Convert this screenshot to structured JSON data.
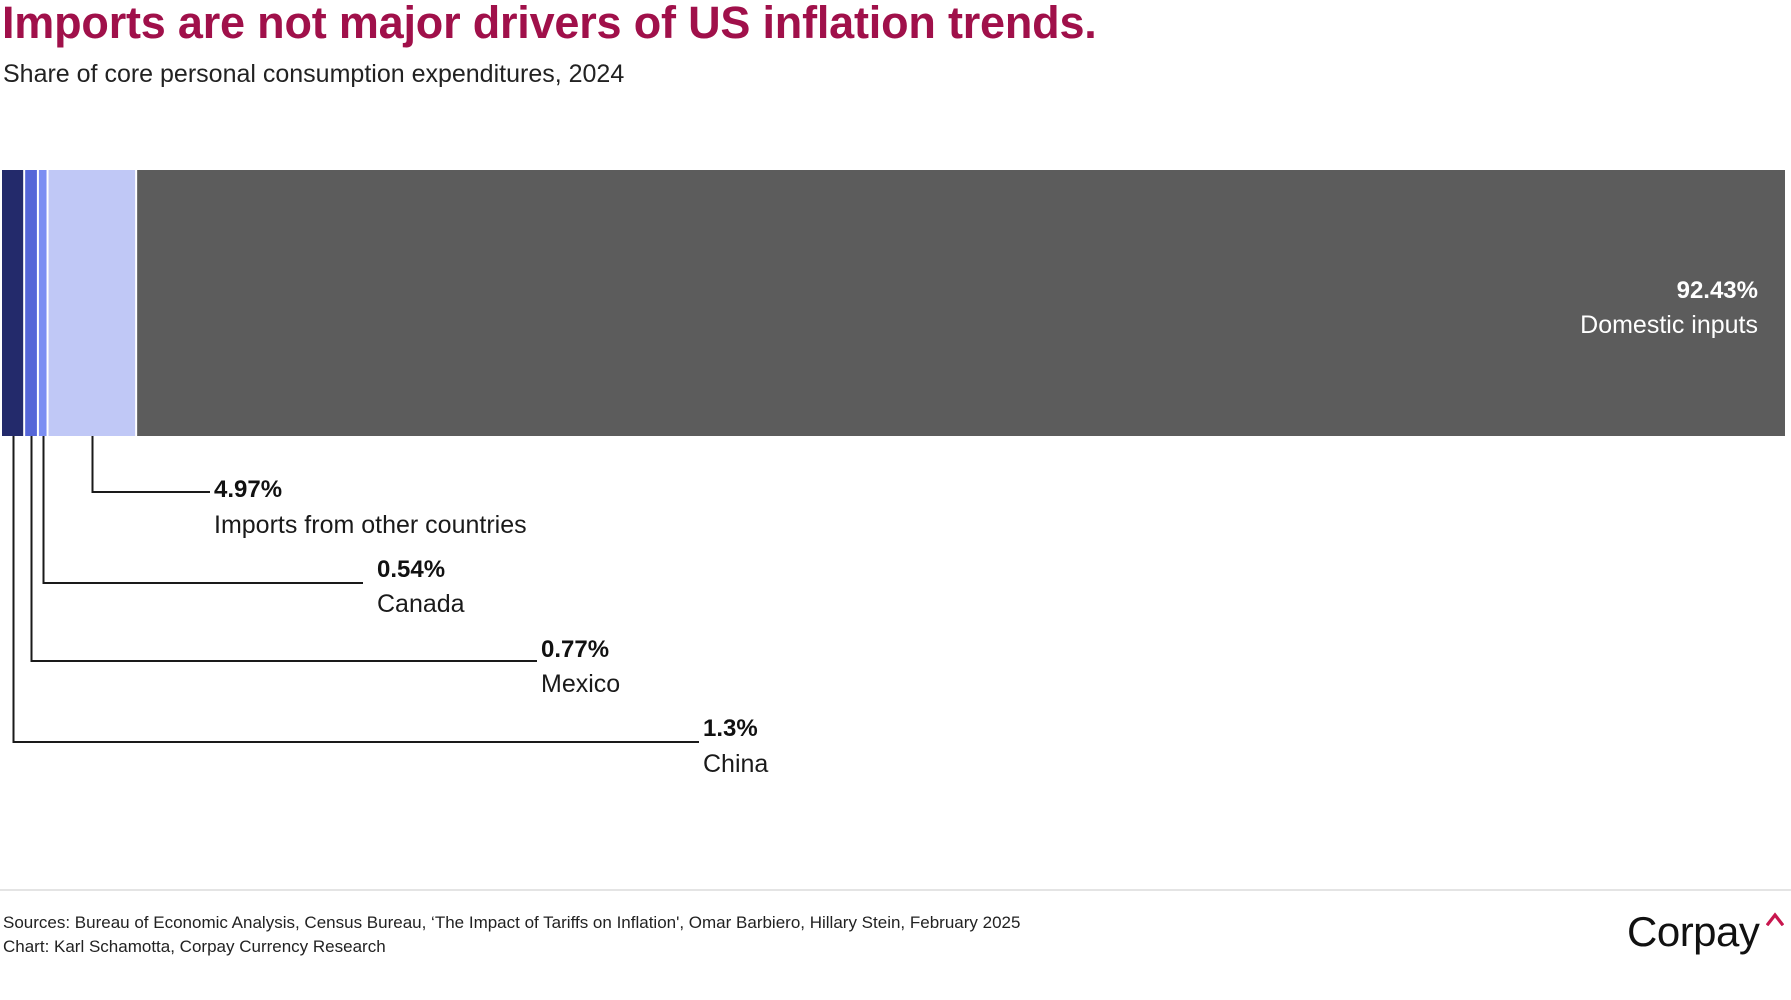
{
  "header": {
    "title": "Imports are not major drivers of US inflation trends.",
    "subtitle": "Share of core personal consumption expenditures, 2024"
  },
  "chart_data": {
    "type": "bar",
    "orientation": "horizontal-stacked",
    "title": "Imports are not major drivers of US inflation trends.",
    "subtitle": "Share of core personal consumption expenditures, 2024",
    "xlabel": "",
    "ylabel": "",
    "xlim": [
      0,
      100
    ],
    "grid": false,
    "unit": "%",
    "series": [
      {
        "name": "China",
        "value": 1.3,
        "label": "1.3%",
        "color": "#232A6B",
        "text_color": "#111111"
      },
      {
        "name": "Mexico",
        "value": 0.77,
        "label": "0.77%",
        "color": "#5566D8",
        "text_color": "#111111"
      },
      {
        "name": "Canada",
        "value": 0.54,
        "label": "0.54%",
        "color": "#7B8EF2",
        "text_color": "#111111"
      },
      {
        "name": "Imports from other countries",
        "value": 4.97,
        "label": "4.97%",
        "color": "#C0C8F6",
        "text_color": "#111111"
      },
      {
        "name": "Domestic inputs",
        "value": 92.43,
        "label": "92.43%",
        "color": "#5C5C5C",
        "text_color": "#ffffff"
      }
    ]
  },
  "footer": {
    "sources": "Sources: Bureau of Economic Analysis, Census Bureau, ‘The Impact of Tariffs on Inflation', Omar Barbiero, Hillary Stein, February 2025",
    "credit": "Chart: Karl Schamotta, Corpay Currency Research",
    "logo_text": "Corpay",
    "logo_accent_color": "#C8164E"
  }
}
